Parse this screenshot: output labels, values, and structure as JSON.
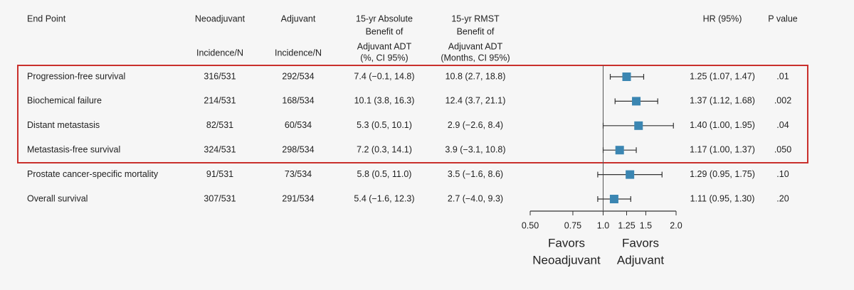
{
  "chart_data": {
    "type": "forest",
    "row_header": "End Point",
    "categories": [
      "Progression-free survival",
      "Biochemical failure",
      "Distant metastasis",
      "Metastasis-free survival",
      "Prostate cancer-specific mortality",
      "Overall survival"
    ],
    "columns": [
      {
        "header": [
          "Neoadjuvant"
        ],
        "subheader": [
          "Incidence/N"
        ],
        "cells": [
          "316/531",
          "214/531",
          "82/531",
          "324/531",
          "91/531",
          "307/531"
        ]
      },
      {
        "header": [
          "Adjuvant"
        ],
        "subheader": [
          "Incidence/N"
        ],
        "cells": [
          "292/534",
          "168/534",
          "60/534",
          "298/534",
          "73/534",
          "291/534"
        ]
      },
      {
        "header": [
          "15-yr Absolute",
          "Benefit of"
        ],
        "subheader": [
          "Adjuvant ADT",
          "(%, CI 95%)"
        ],
        "cells": [
          "7.4 (−0.1, 14.8)",
          "10.1 (3.8, 16.3)",
          "5.3 (0.5, 10.1)",
          "7.2 (0.3, 14.1)",
          "5.8 (0.5, 11.0)",
          "5.4 (−1.6, 12.3)"
        ]
      },
      {
        "header": [
          "15-yr RMST",
          "Benefit of"
        ],
        "subheader": [
          "Adjuvant ADT",
          "(Months, CI 95%)"
        ],
        "cells": [
          "10.8 (2.7, 18.8)",
          "12.4 (3.7, 21.1)",
          "2.9 (−2.6, 8.4)",
          "3.9 (−3.1, 10.8)",
          "3.5 (−1.6, 8.6)",
          "2.7 (−4.0, 9.3)"
        ]
      }
    ],
    "series": [
      {
        "name": "HR (95%)",
        "color": "#3b86b2",
        "values": [
          1.25,
          1.37,
          1.4,
          1.17,
          1.29,
          1.11
        ],
        "lower": [
          1.07,
          1.12,
          1.0,
          1.0,
          0.95,
          0.95
        ],
        "upper": [
          1.47,
          1.68,
          1.95,
          1.37,
          1.75,
          1.3
        ],
        "value_labels": [
          "1.25 (1.07, 1.47)",
          "1.37 (1.12, 1.68)",
          "1.40 (1.00, 1.95)",
          "1.17 (1.00, 1.37)",
          "1.29 (0.95, 1.75)",
          "1.11 (0.95, 1.30)"
        ]
      }
    ],
    "p_header": "P value",
    "p_values": [
      ".01",
      ".002",
      ".04",
      ".050",
      ".10",
      ".20"
    ],
    "xlim": [
      0.5,
      2.0
    ],
    "xticks": [
      {
        "value": 0.5,
        "label": "0.50"
      },
      0.75,
      {
        "value": 1.0,
        "label": "1.0"
      },
      1.25,
      {
        "value": 1.5,
        "label": "1.5"
      },
      {
        "value": 2.0,
        "label": "2.0"
      }
    ],
    "xscale": "log",
    "reference": 1.0,
    "annotations": [
      [
        "Favors",
        "Neoadjuvant"
      ],
      [
        "Favors",
        "Adjuvant"
      ]
    ]
  }
}
